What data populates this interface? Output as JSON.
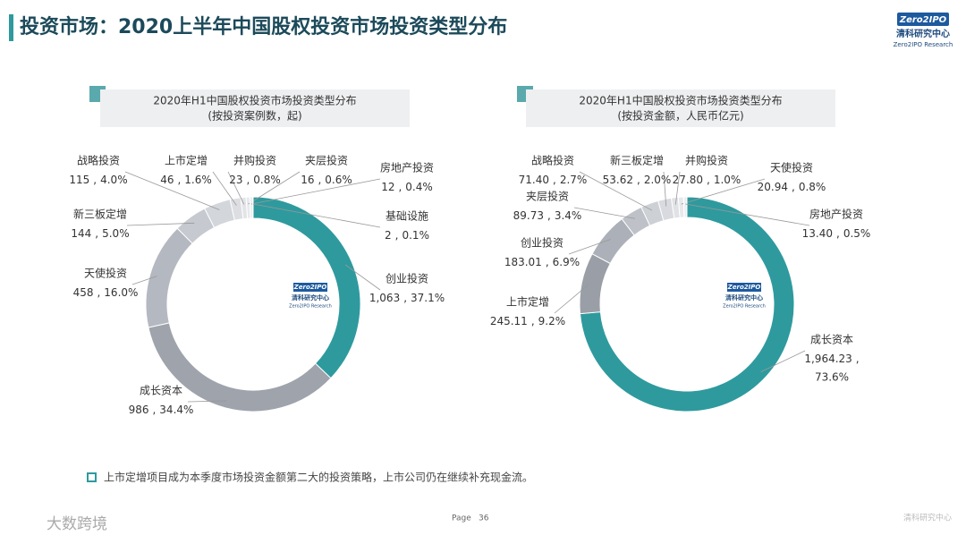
{
  "header": {
    "title": "投资市场：2020上半年中国股权投资市场投资类型分布"
  },
  "logo": {
    "brand": "Zero2IPO",
    "name": "清科研究中心",
    "sub": "Zero2IPO Research"
  },
  "chart_data": [
    {
      "type": "donut",
      "title": "2020年H1中国股权投资市场投资类型分布",
      "subtitle": "(按投资案例数，起)",
      "categories": [
        "创业投资",
        "成长资本",
        "天使投资",
        "新三板定增",
        "战略投资",
        "上市定增",
        "并购投资",
        "夹层投资",
        "房地产投资",
        "基础设施"
      ],
      "values": [
        1063,
        986,
        458,
        144,
        115,
        46,
        23,
        16,
        12,
        2
      ],
      "value_labels": [
        "1,063",
        "986",
        "458",
        "144",
        "115",
        "46",
        "23",
        "16",
        "12",
        "2"
      ],
      "percents": [
        37.1,
        34.4,
        16.0,
        5.0,
        4.0,
        1.6,
        0.8,
        0.6,
        0.4,
        0.1
      ],
      "percent_labels": [
        "37.1%",
        "34.4%",
        "16.0%",
        "5.0%",
        "4.0%",
        "1.6%",
        "0.8%",
        "0.6%",
        "0.4%",
        "0.1%"
      ],
      "label_separator": ",",
      "colors": [
        "#2e9a9e",
        "#9ea3ac",
        "#b4b8c0",
        "#c6c9cf",
        "#d3d6db",
        "#dcdee2",
        "#e2e4e8",
        "#e7e9ec",
        "#eceef0",
        "#f0f1f3"
      ]
    },
    {
      "type": "donut",
      "title": "2020年H1中国股权投资市场投资类型分布",
      "subtitle": "(按投资金额，人民币亿元)",
      "categories": [
        "成长资本",
        "上市定增",
        "创业投资",
        "夹层投资",
        "战略投资",
        "新三板定增",
        "并购投资",
        "天使投资",
        "房地产投资"
      ],
      "values": [
        1964.23,
        245.11,
        183.01,
        89.73,
        71.4,
        53.62,
        27.8,
        20.94,
        13.4
      ],
      "value_labels": [
        "1,964.23",
        "245.11",
        "183.01",
        "89.73",
        "71.40",
        "53.62",
        "27.80",
        "20.94",
        "13.40"
      ],
      "percents": [
        73.6,
        9.2,
        6.9,
        3.4,
        2.7,
        2.0,
        1.0,
        0.8,
        0.5
      ],
      "percent_labels": [
        "73.6%",
        "9.2%",
        "6.9%",
        "3.4%",
        "2.7%",
        "2.0%",
        "1.0%",
        "0.8%",
        "0.5%"
      ],
      "label_separator": ",",
      "colors": [
        "#2e9a9e",
        "#9a9ea7",
        "#acb0b8",
        "#bec1c8",
        "#cdd0d5",
        "#d8dadf",
        "#e0e2e6",
        "#e6e8eb",
        "#eceef0"
      ]
    }
  ],
  "footnote": "上市定增项目成为本季度市场投资金额第二大的投资策略，上市公司仍在继续补充现金流。",
  "page": {
    "label": "Page",
    "number": 36
  },
  "watermark": "大数跨境"
}
